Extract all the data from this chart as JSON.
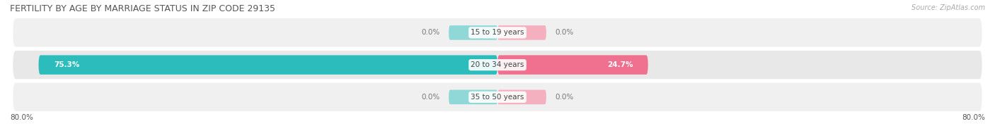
{
  "title": "FERTILITY BY AGE BY MARRIAGE STATUS IN ZIP CODE 29135",
  "source": "Source: ZipAtlas.com",
  "rows": [
    {
      "label": "15 to 19 years",
      "married_pct": 0.0,
      "unmarried_pct": 0.0,
      "married_display": "0.0%",
      "unmarried_display": "0.0%"
    },
    {
      "label": "20 to 34 years",
      "married_pct": 75.3,
      "unmarried_pct": 24.7,
      "married_display": "75.3%",
      "unmarried_display": "24.7%"
    },
    {
      "label": "35 to 50 years",
      "married_pct": 0.0,
      "unmarried_pct": 0.0,
      "married_display": "0.0%",
      "unmarried_display": "0.0%"
    }
  ],
  "axis_max": 80.0,
  "axis_label_left": "80.0%",
  "axis_label_right": "80.0%",
  "married_color": "#2dbcbc",
  "unmarried_color": "#f07090",
  "married_color_light": "#90d8d8",
  "unmarried_color_light": "#f5b0c0",
  "row_bg_even": "#e8e8e8",
  "row_bg_odd": "#f0f0f0",
  "title_color": "#555555",
  "source_color": "#aaaaaa",
  "label_color_dark": "#555555",
  "value_color_on_bar": "#ffffff",
  "value_color_off_bar": "#777777",
  "title_fontsize": 9,
  "source_fontsize": 7,
  "label_fontsize": 7.5,
  "value_fontsize": 7.5,
  "legend_fontsize": 8,
  "small_stub_pct": 8.0
}
